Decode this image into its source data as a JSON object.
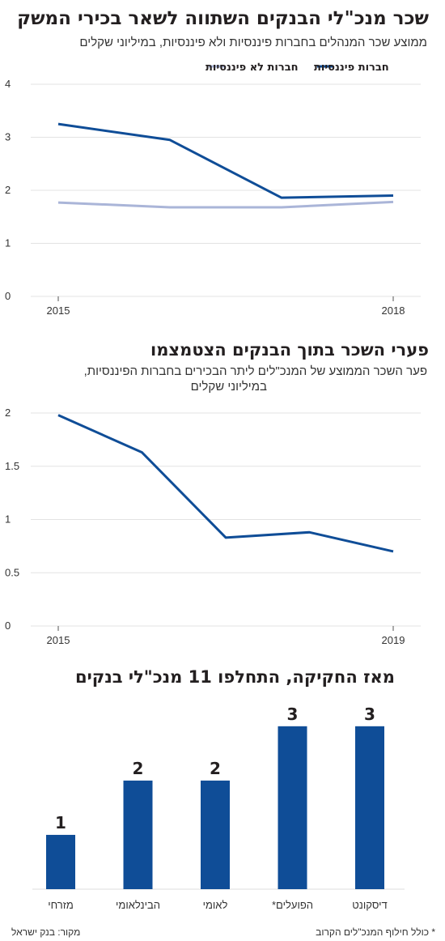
{
  "colors": {
    "primary": "#0f4d97",
    "secondary": "#aab5d8",
    "axis": "#555555"
  },
  "chart1": {
    "title": "שכר מנכ\"לי הבנקים השתווה לשאר בכירי המשק",
    "subtitle": "ממוצע שכר המנהלים בחברות פיננסיות ולא פיננסיות, במיליוני שקלים",
    "legend": {
      "financial": "חברות פיננסיות",
      "non_financial": "חברות לא פיננסיות"
    }
  },
  "chart2": {
    "title": "פערי השכר בתוך הבנקים הצטמצמו",
    "subtitle_line1": "פער השכר הממוצע של המנכ\"לים ליתר הבכירים בחברות הפיננסיות,",
    "subtitle_line2": "במיליוני שקלים"
  },
  "chart3": {
    "title": "מאז החקיקה, התחלפו 11 מנכ\"לי בנקים"
  },
  "footer": {
    "source": "מקור: בנק ישראל",
    "note": "* כולל חילוף המנכ\"לים הקרוב"
  },
  "chart_data": [
    {
      "type": "line",
      "x": [
        2015,
        2016,
        2017,
        2018
      ],
      "x_tick_labels": [
        "2015",
        "2018"
      ],
      "series": [
        {
          "name": "חברות פיננסיות",
          "color": "#0f4d97",
          "values": [
            3.25,
            2.95,
            1.86,
            1.9
          ]
        },
        {
          "name": "חברות לא פיננסיות",
          "color": "#aab5d8",
          "values": [
            1.77,
            1.68,
            1.68,
            1.78
          ]
        }
      ],
      "y_ticks": [
        0,
        1,
        2,
        3,
        4
      ],
      "ylim": [
        0,
        4
      ],
      "grid": true,
      "legend_position": "top-right"
    },
    {
      "type": "line",
      "x": [
        2015,
        2016,
        2017,
        2018,
        2019
      ],
      "x_tick_labels": [
        "2015",
        "2019"
      ],
      "series": [
        {
          "color": "#0f4d97",
          "values": [
            1.98,
            1.63,
            0.83,
            0.88,
            0.7
          ]
        }
      ],
      "y_ticks": [
        0,
        0.5,
        1,
        1.5,
        2
      ],
      "y_tick_labels": [
        "0",
        "0.5",
        "1",
        "1.5",
        "2"
      ],
      "ylim": [
        0,
        2
      ],
      "grid": true
    },
    {
      "type": "bar",
      "categories": [
        "מזרחי",
        "הבינלאומי",
        "לאומי",
        "הפועלים*",
        "דיסקונט"
      ],
      "values": [
        1,
        2,
        2,
        3,
        3
      ],
      "color": "#0f4d97",
      "ylim": [
        0,
        3.4
      ],
      "grid": false
    }
  ]
}
